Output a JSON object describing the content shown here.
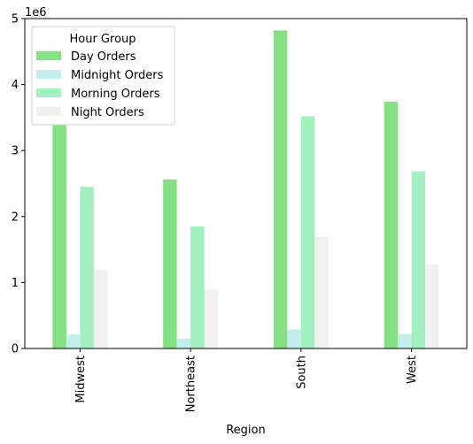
{
  "chart_data": {
    "type": "bar",
    "title": "",
    "xlabel": "Region",
    "ylabel": "",
    "y_scale_label": "1e6",
    "y_scale": 1000000,
    "categories": [
      "Midwest",
      "Northeast",
      "South",
      "West"
    ],
    "ylim": [
      0,
      5000000
    ],
    "yticks": [
      0,
      1,
      2,
      3,
      4,
      5
    ],
    "grid": false,
    "legend": {
      "title": "Hour Group",
      "position": "top-left"
    },
    "series": [
      {
        "name": "Day Orders",
        "color": "#86e084",
        "values": [
          3390000,
          2560000,
          4820000,
          3740000
        ]
      },
      {
        "name": "Midnight Orders",
        "color": "#c2eeee",
        "values": [
          210000,
          150000,
          290000,
          220000
        ]
      },
      {
        "name": "Morning Orders",
        "color": "#a2f0c0",
        "values": [
          2450000,
          1850000,
          3520000,
          2680000
        ]
      },
      {
        "name": "Night Orders",
        "color": "#f0f0f0",
        "values": [
          1190000,
          890000,
          1690000,
          1270000
        ]
      }
    ]
  }
}
